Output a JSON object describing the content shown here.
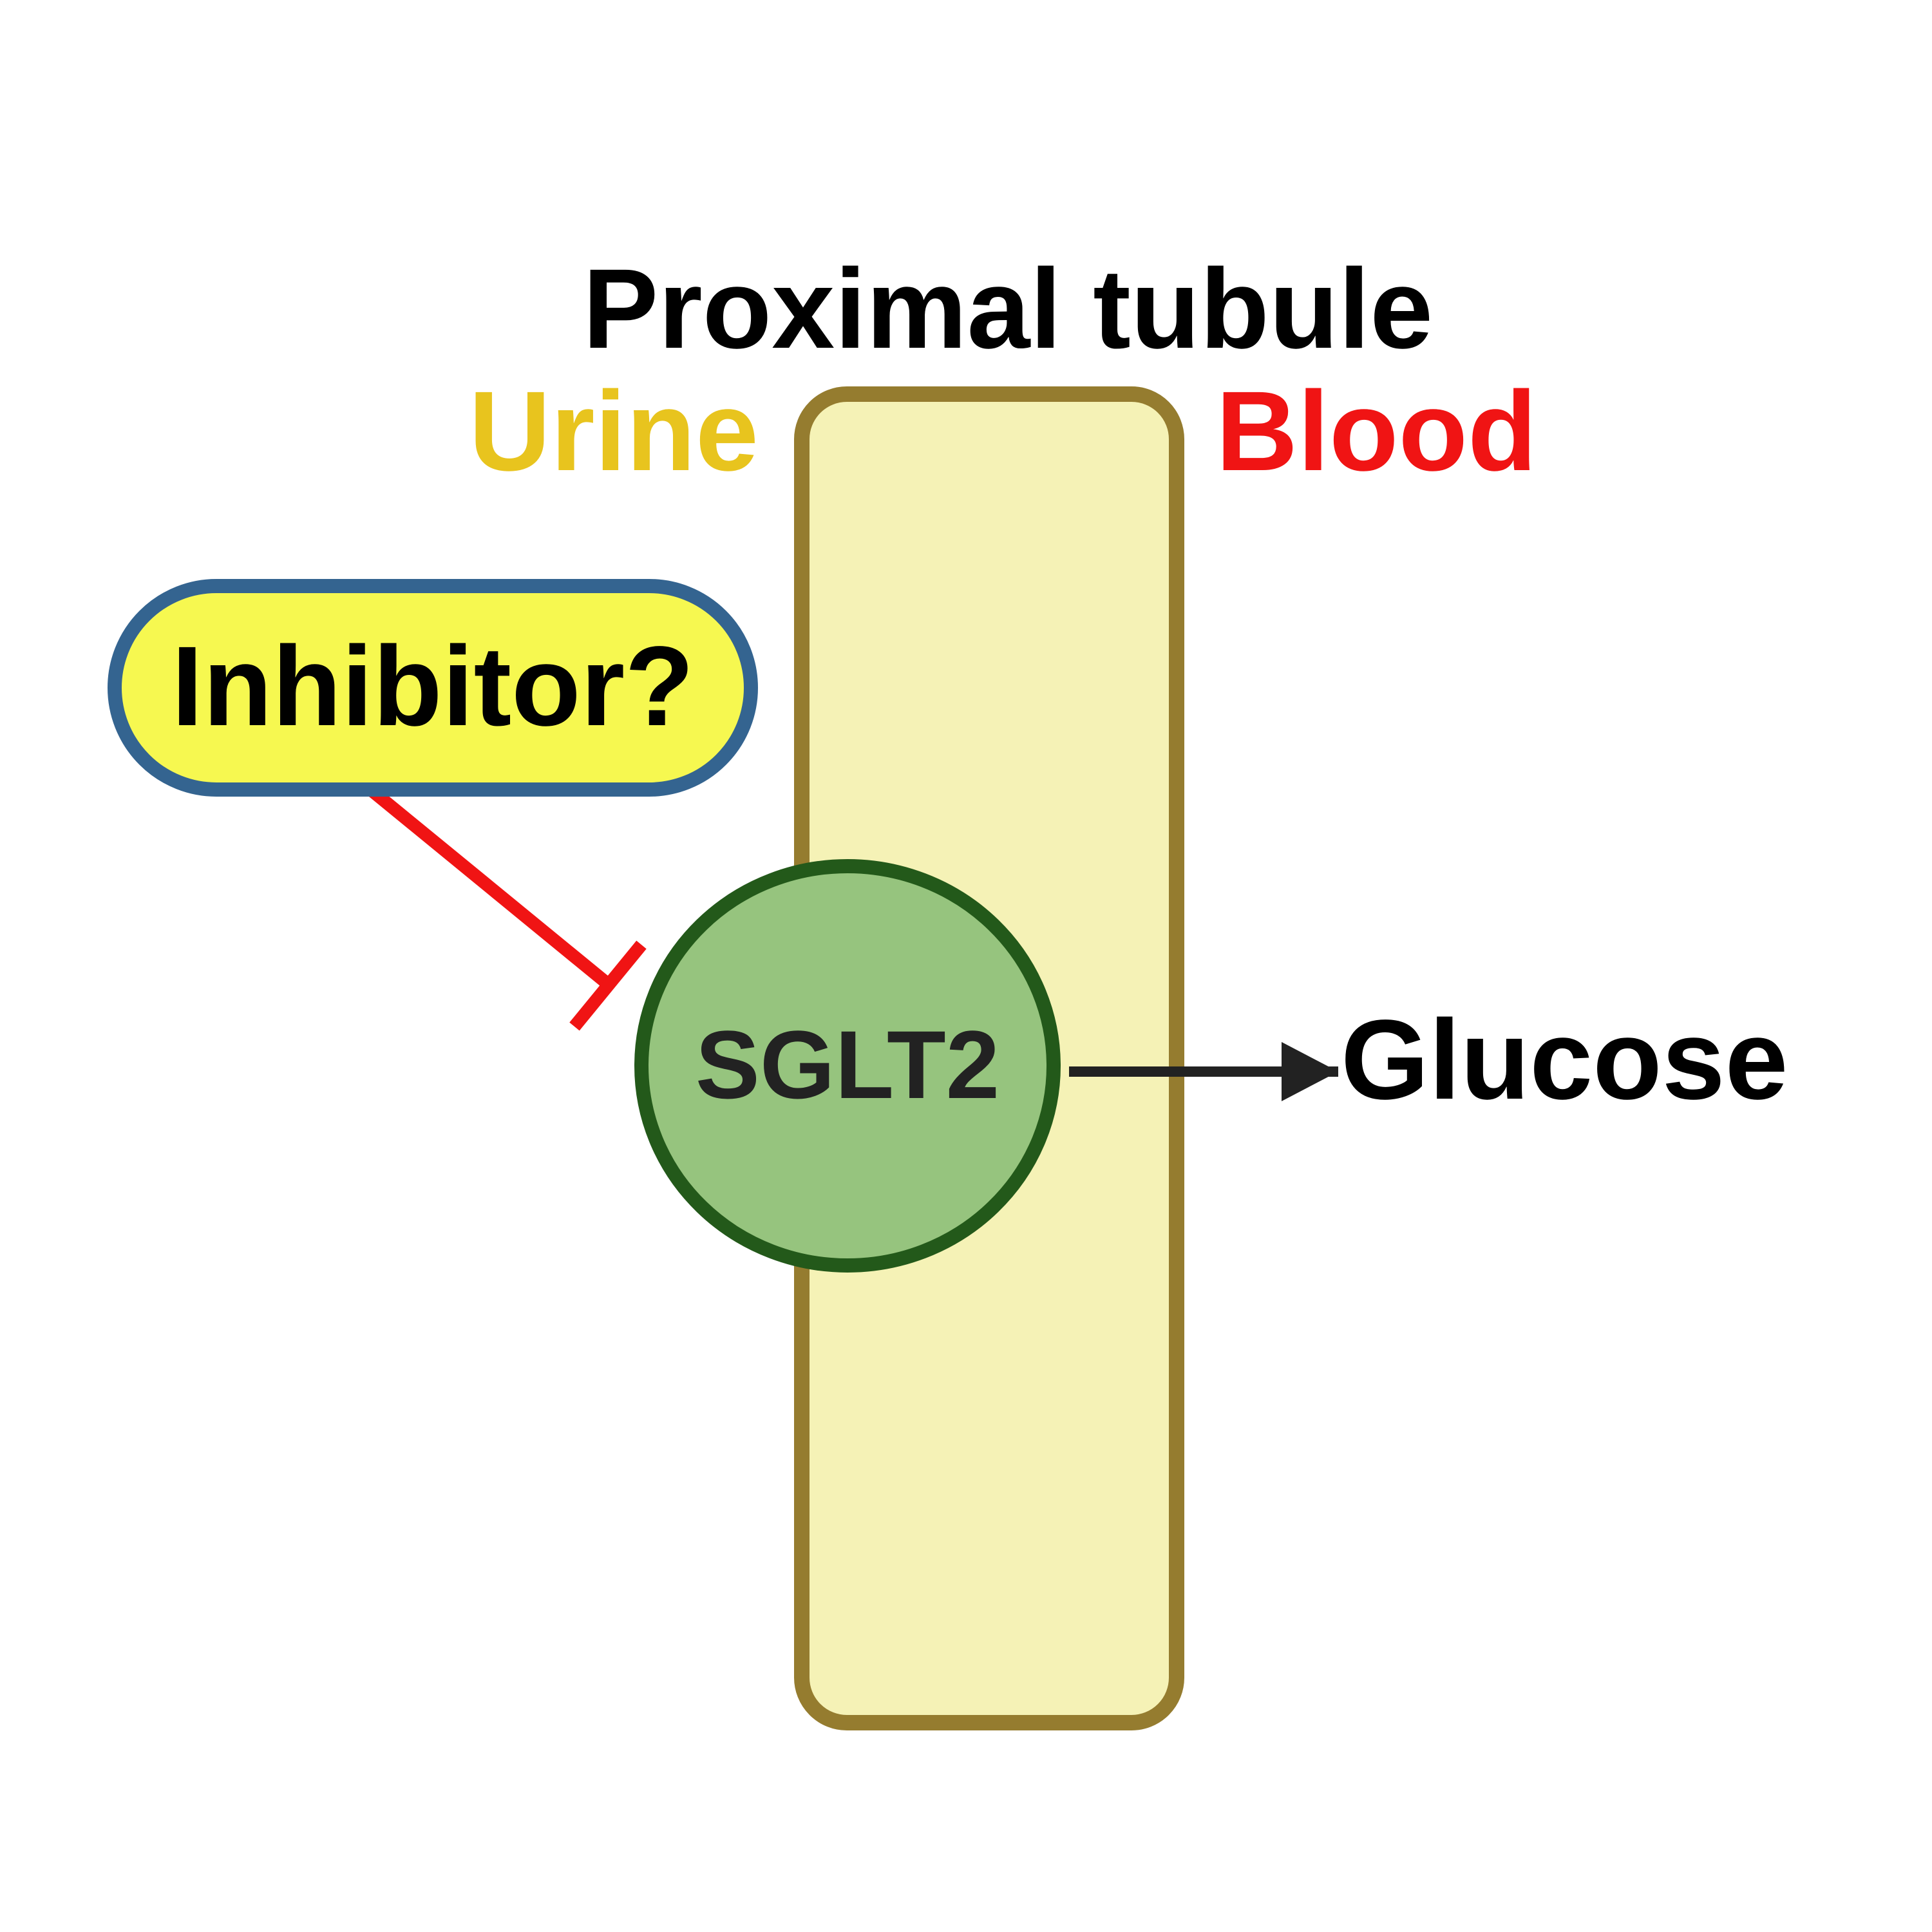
{
  "title": "Proximal tubule",
  "labels": {
    "urine": "Urine",
    "blood": "Blood",
    "inhibitor": "Inhibitor?",
    "transporter": "SGLT2",
    "product": "Glucose"
  },
  "colors": {
    "background": "#ffffff",
    "urine_text": "#e8c41e",
    "blood_text": "#f01414",
    "tubule_fill": "#f5f2b6",
    "tubule_stroke": "#957c2f",
    "inhibitor_fill": "#f6f850",
    "inhibitor_stroke": "#346490",
    "inhibition_line": "#f01414",
    "sglt2_fill": "#96c47e",
    "sglt2_stroke": "#23591a",
    "sglt2_text": "#222222",
    "arrow": "#222222",
    "text": "#000000"
  }
}
